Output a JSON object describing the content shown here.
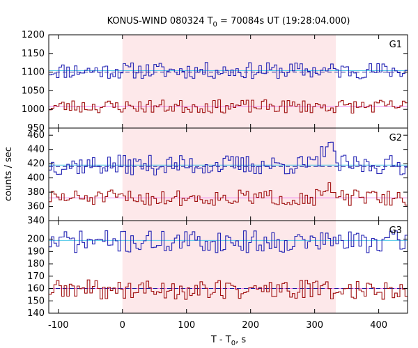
{
  "chart_data": {
    "type": "line",
    "title_main": "KONUS-WIND 080324 T",
    "title_sub": "0",
    "title_rest": " = 70084s UT (19:28:04.000)",
    "xlabel_main": "T - T",
    "xlabel_sub": "0",
    "xlabel_rest": ", s",
    "ylabel": "counts / sec",
    "xlim": [
      -115,
      445
    ],
    "xticks": [
      -100,
      0,
      100,
      200,
      300,
      400
    ],
    "xtick_labels": [
      "-100",
      "0",
      "100",
      "200",
      "300",
      "400"
    ],
    "shaded_interval": [
      0,
      333
    ],
    "bin_width": 4,
    "colors": {
      "upper_curve": "#2323b4",
      "lower_curve": "#a01010",
      "upper_model": "#4ec8e8",
      "lower_model": "#ee82ee",
      "background_fit": "#1a1a99",
      "shade": "#fde8ea"
    },
    "panels": [
      {
        "id": "G1",
        "label": "G1",
        "ylim": [
          950,
          1200
        ],
        "yticks": [
          950,
          1000,
          1050,
          1100,
          1150,
          1200
        ],
        "ytick_labels": [
          "950",
          "1000",
          "1050",
          "1100",
          "1150",
          "1200"
        ],
        "upper": {
          "mean": 1104,
          "amplitude": 22,
          "seed": 11,
          "peak": 0
        },
        "lower": {
          "mean": 1008,
          "amplitude": 18,
          "seed": 23,
          "peak": 0
        },
        "upper_model_level": 1104,
        "lower_model_level": 1008,
        "background_level": 1100
      },
      {
        "id": "G2",
        "label": "G2",
        "ylim": [
          340,
          470
        ],
        "yticks": [
          340,
          360,
          380,
          400,
          420,
          440,
          460
        ],
        "ytick_labels": [
          "340",
          "360",
          "380",
          "400",
          "420",
          "440",
          "460"
        ],
        "upper": {
          "mean": 418,
          "amplitude": 14,
          "seed": 37,
          "peak": 32
        },
        "lower": {
          "mean": 372,
          "amplitude": 11,
          "seed": 51,
          "peak": 12
        },
        "upper_model_level": 418,
        "lower_model_level": 372,
        "background_level": 416
      },
      {
        "id": "G3",
        "label": "G3",
        "ylim": [
          140,
          215
        ],
        "yticks": [
          140,
          150,
          160,
          170,
          180,
          190,
          200
        ],
        "ytick_labels": [
          "140",
          "150",
          "160",
          "170",
          "180",
          "190",
          "200"
        ],
        "upper": {
          "mean": 198,
          "amplitude": 9,
          "seed": 71,
          "peak": 0
        },
        "lower": {
          "mean": 159,
          "amplitude": 8,
          "seed": 89,
          "peak": 0
        },
        "upper_model_level": 199,
        "lower_model_level": 160,
        "background_level": 160
      }
    ]
  }
}
